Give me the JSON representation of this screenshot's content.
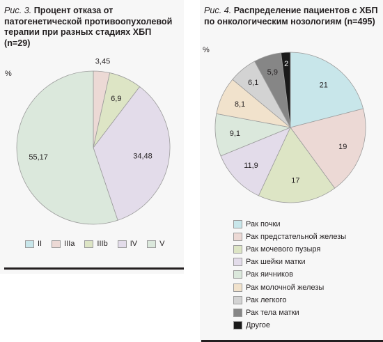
{
  "figure3": {
    "caption_fig": "Рис. 3.",
    "caption_text": "Процент отказа от патогенетической противоопухолевой терапии при разных стадиях ХБП (n=29)",
    "unit": "%"
  },
  "figure4": {
    "caption_fig": "Рис. 4.",
    "caption_text": "Распределение пациентов с ХБП по онкологическим нозологиям (n=495)",
    "unit": "%"
  },
  "chart_data": [
    {
      "type": "pie",
      "title": "Процент отказа от патогенетической противоопухолевой терапии при разных стадиях ХБП (n=29)",
      "unit": "%",
      "legend_position": "bottom",
      "labels": [
        "II",
        "IIIa",
        "IIIb",
        "IV",
        "V"
      ],
      "values": [
        0,
        3.45,
        6.9,
        34.48,
        55.17
      ],
      "value_labels": [
        "",
        "3,45",
        "6,9",
        "34,48",
        "55,17"
      ],
      "colors": [
        "#c8e6ea",
        "#ecd9d5",
        "#dde5c5",
        "#e3dcea",
        "#dbe8dc"
      ]
    },
    {
      "type": "pie",
      "title": "Распределение пациентов с ХБП по онкологическим нозологиям (n=495)",
      "unit": "%",
      "legend_position": "bottom",
      "labels": [
        "Рак почки",
        "Рак предстательной железы",
        "Рак мочевого пузыря",
        "Рак шейки матки",
        "Рак яичников",
        "Рак молочной железы",
        "Рак легкого",
        "Рак тела матки",
        "Другое"
      ],
      "values": [
        21,
        19,
        17,
        11.9,
        9.1,
        8.1,
        6.1,
        5.9,
        2
      ],
      "value_labels": [
        "21",
        "19",
        "17",
        "11,9",
        "9,1",
        "8,1",
        "6,1",
        "5,9",
        "2"
      ],
      "colors": [
        "#c8e6ea",
        "#ecd9d5",
        "#dde5c5",
        "#e3dcea",
        "#dbe8dc",
        "#f1e2cc",
        "#d3d3d3",
        "#868686",
        "#1a1a1a"
      ]
    }
  ]
}
